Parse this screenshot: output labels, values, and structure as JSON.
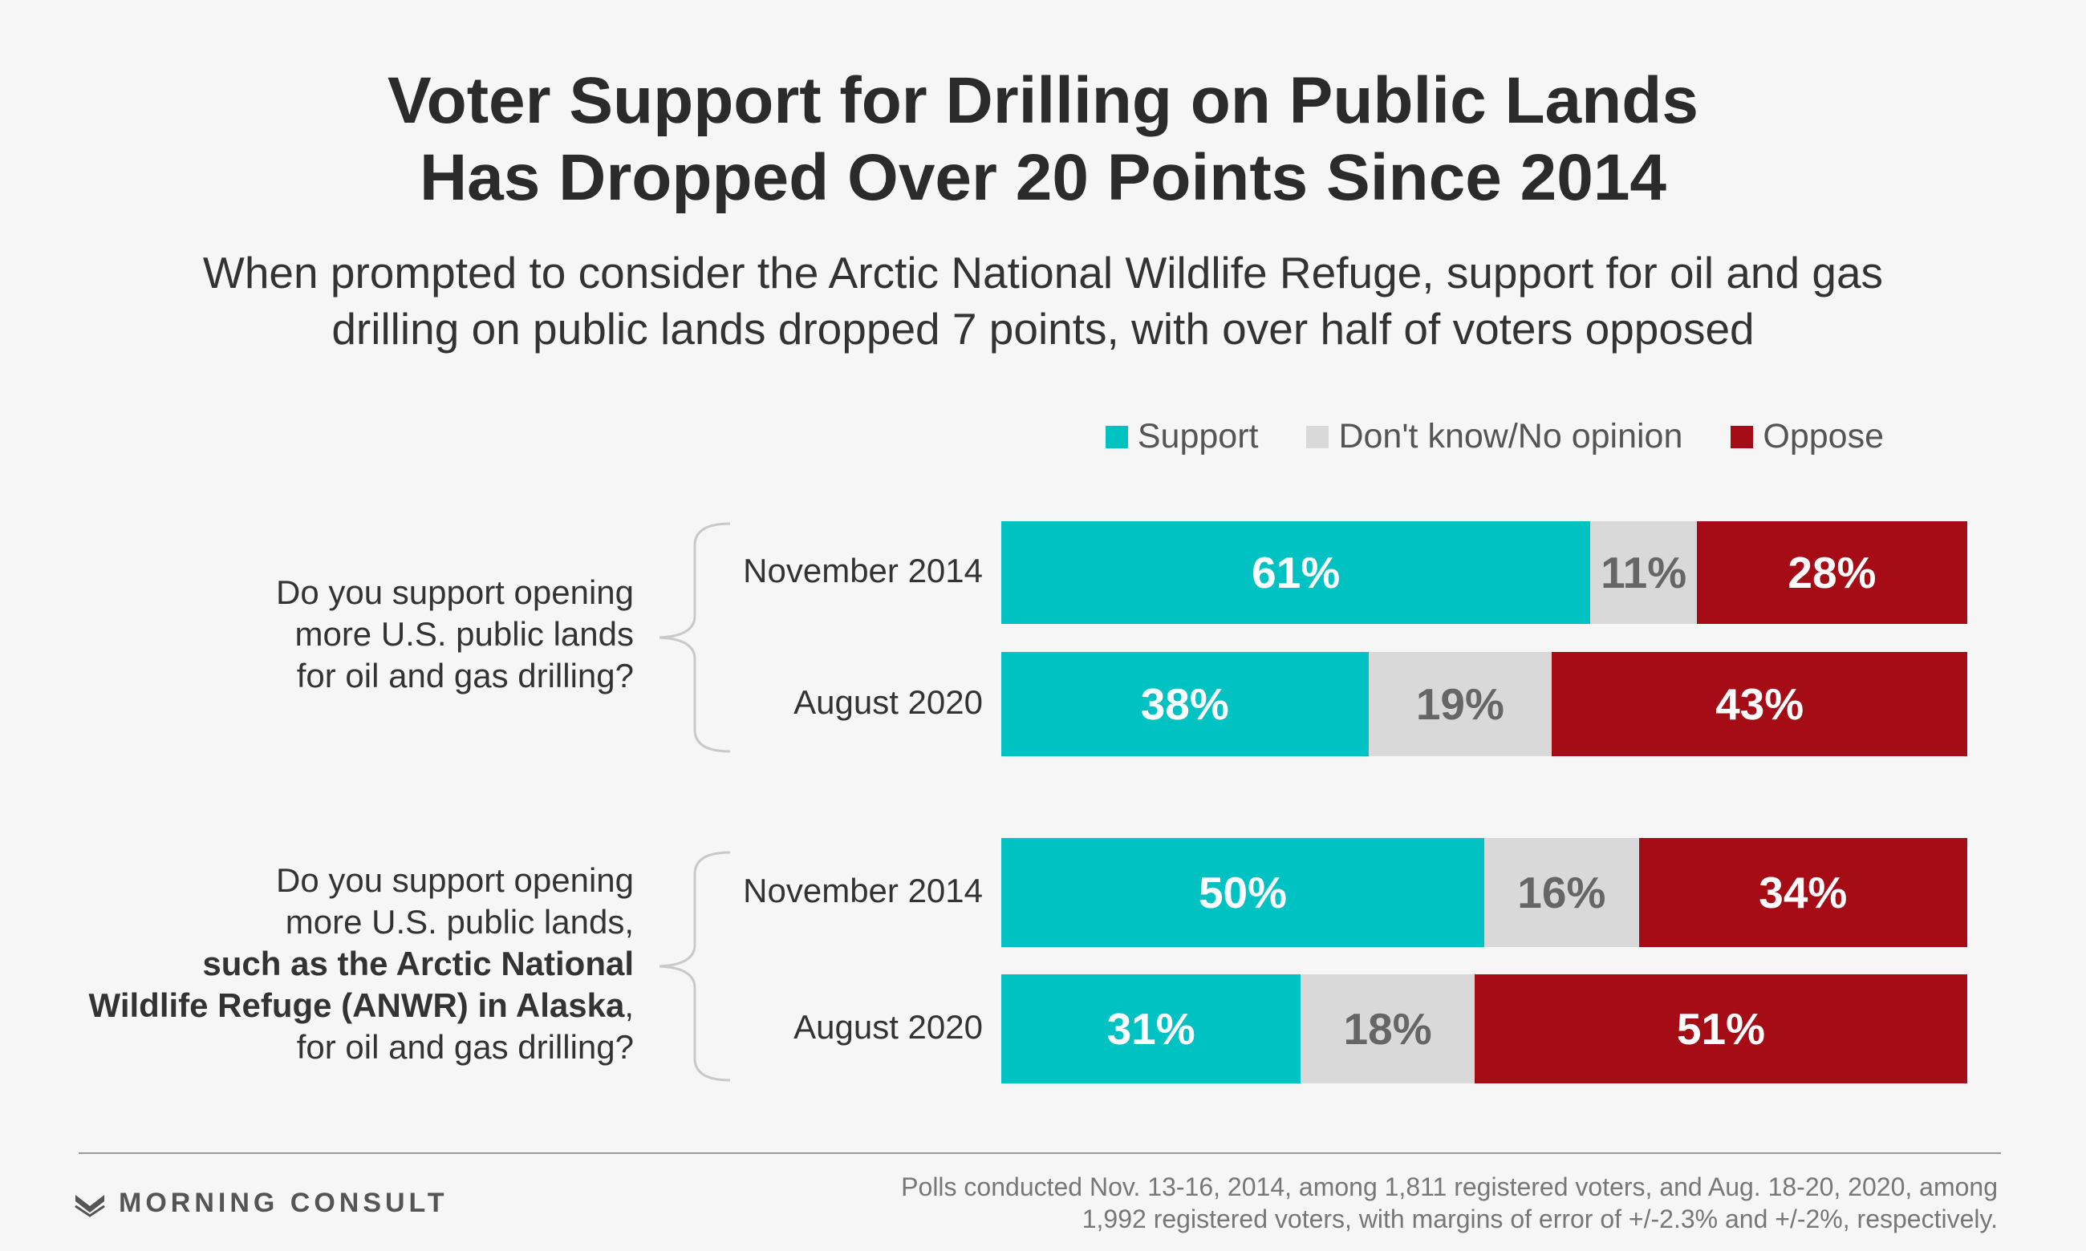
{
  "title_line1": "Voter Support for Drilling on Public Lands",
  "title_line2": "Has Dropped Over 20 Points Since 2014",
  "subtitle_line1": "When prompted to consider the Arctic National Wildlife Refuge, support for oil and gas",
  "subtitle_line2": "drilling on public lands dropped 7 points, with over half of voters opposed",
  "legend": {
    "support": "Support",
    "dont_know": "Don't know/No opinion",
    "oppose": "Oppose"
  },
  "colors": {
    "support": "#00c2c2",
    "dont_know": "#d9d9d9",
    "oppose": "#a50c16",
    "support_text": "#ffffff",
    "dont_know_text": "#666666",
    "oppose_text": "#ffffff"
  },
  "questions": {
    "q1": {
      "line1": "Do you support opening",
      "line2": "more U.S. public lands",
      "line3": "for oil and gas drilling?"
    },
    "q2": {
      "line1": "Do you support opening",
      "line2": "more U.S. public lands,",
      "line3_bold": "such as the Arctic National",
      "line4_bold": "Wildlife Refuge (ANWR) in Alaska",
      "line4_tail": ",",
      "line5": "for oil and gas drilling?"
    }
  },
  "chart_data": {
    "type": "bar",
    "orientation": "horizontal",
    "stacked": true,
    "unit": "%",
    "groups": [
      "q1",
      "q2"
    ],
    "categories": [
      "November 2014",
      "August 2020",
      "November 2014",
      "August 2020"
    ],
    "series": [
      {
        "name": "Support",
        "values": [
          61,
          38,
          50,
          31
        ]
      },
      {
        "name": "Don't know/No opinion",
        "values": [
          11,
          19,
          16,
          18
        ]
      },
      {
        "name": "Oppose",
        "values": [
          28,
          43,
          34,
          51
        ]
      }
    ],
    "labels": [
      [
        "61%",
        "11%",
        "28%"
      ],
      [
        "38%",
        "19%",
        "43%"
      ],
      [
        "50%",
        "16%",
        "34%"
      ],
      [
        "31%",
        "18%",
        "51%"
      ]
    ],
    "legend_position": "top-right"
  },
  "brand": "MORNING CONSULT",
  "footnote_line1": "Polls conducted Nov. 13-16, 2014, among 1,811 registered voters, and Aug. 18-20, 2020, among",
  "footnote_line2": "1,992 registered voters, with margins of error of +/-2.3% and +/-2%, respectively."
}
